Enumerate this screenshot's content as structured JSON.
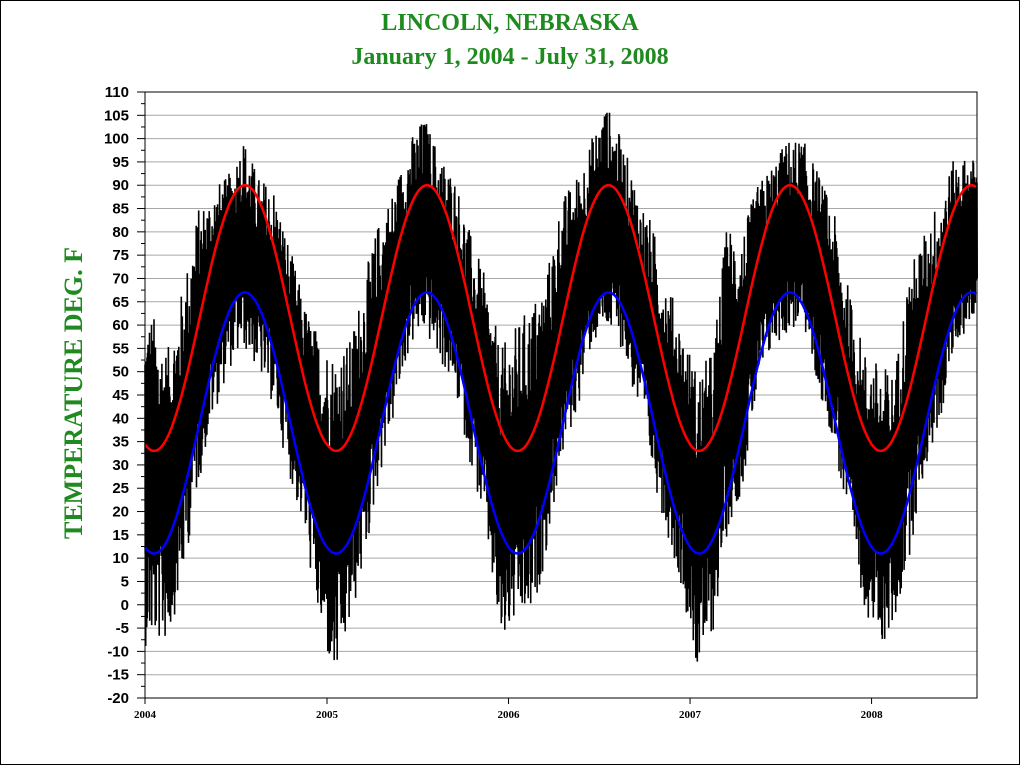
{
  "chart_data": {
    "type": "line",
    "title": "LINCOLN, NEBRASKA",
    "subtitle": "January 1, 2004 - July 31,  2008",
    "ylabel": "TEMPERATURE DEG. F",
    "xlabel": "",
    "x_range": [
      "2004-01-01",
      "2008-07-31"
    ],
    "ylim": [
      -20,
      110
    ],
    "yticks": [
      "110",
      "105",
      "100",
      "95",
      "90",
      "85",
      "80",
      "75",
      "70",
      "65",
      "60",
      "55",
      "50",
      "45",
      "40",
      "35",
      "30",
      "25",
      "20",
      "15",
      "10",
      "5",
      "0",
      "-5",
      "-10",
      "-15",
      "-20"
    ],
    "xticks": [
      "2004",
      "2005",
      "2006",
      "2007",
      "2008"
    ],
    "grid": true,
    "series": [
      {
        "color": "#000000",
        "style": "daily observed temperature (dense)",
        "values": [
          {
            "x": "2004-01",
            "y": [
              -9,
              63
            ]
          },
          {
            "x": "2004-02",
            "y": [
              -8,
              55
            ]
          },
          {
            "x": "2004-03",
            "y": [
              5,
              68
            ]
          },
          {
            "x": "2004-04",
            "y": [
              25,
              85
            ]
          },
          {
            "x": "2004-05",
            "y": [
              40,
              90
            ]
          },
          {
            "x": "2004-06",
            "y": [
              50,
              92
            ]
          },
          {
            "x": "2004-07",
            "y": [
              55,
              101
            ]
          },
          {
            "x": "2004-08",
            "y": [
              50,
              92
            ]
          },
          {
            "x": "2004-09",
            "y": [
              42,
              90
            ]
          },
          {
            "x": "2004-10",
            "y": [
              28,
              78
            ]
          },
          {
            "x": "2004-11",
            "y": [
              15,
              65
            ]
          },
          {
            "x": "2004-12",
            "y": [
              -5,
              58
            ]
          },
          {
            "x": "2005-01",
            "y": [
              -18,
              55
            ]
          },
          {
            "x": "2005-02",
            "y": [
              -5,
              57
            ]
          },
          {
            "x": "2005-03",
            "y": [
              8,
              70
            ]
          },
          {
            "x": "2005-04",
            "y": [
              27,
              83
            ]
          },
          {
            "x": "2005-05",
            "y": [
              40,
              90
            ]
          },
          {
            "x": "2005-06",
            "y": [
              55,
              100
            ]
          },
          {
            "x": "2005-07",
            "y": [
              58,
              105
            ]
          },
          {
            "x": "2005-08",
            "y": [
              52,
              97
            ]
          },
          {
            "x": "2005-09",
            "y": [
              45,
              92
            ]
          },
          {
            "x": "2005-10",
            "y": [
              30,
              80
            ]
          },
          {
            "x": "2005-11",
            "y": [
              15,
              70
            ]
          },
          {
            "x": "2005-12",
            "y": [
              -10,
              55
            ]
          },
          {
            "x": "2006-01",
            "y": [
              -4,
              60
            ]
          },
          {
            "x": "2006-02",
            "y": [
              -4,
              65
            ]
          },
          {
            "x": "2006-03",
            "y": [
              10,
              70
            ]
          },
          {
            "x": "2006-04",
            "y": [
              30,
              87
            ]
          },
          {
            "x": "2006-05",
            "y": [
              40,
              92
            ]
          },
          {
            "x": "2006-06",
            "y": [
              55,
              100
            ]
          },
          {
            "x": "2006-07",
            "y": [
              58,
              108
            ]
          },
          {
            "x": "2006-08",
            "y": [
              55,
              100
            ]
          },
          {
            "x": "2006-09",
            "y": [
              42,
              90
            ]
          },
          {
            "x": "2006-10",
            "y": [
              28,
              82
            ]
          },
          {
            "x": "2006-11",
            "y": [
              15,
              70
            ]
          },
          {
            "x": "2006-12",
            "y": [
              3,
              60
            ]
          },
          {
            "x": "2007-01",
            "y": [
              -15,
              50
            ]
          },
          {
            "x": "2007-02",
            "y": [
              -6,
              55
            ]
          },
          {
            "x": "2007-03",
            "y": [
              15,
              82
            ]
          },
          {
            "x": "2007-04",
            "y": [
              25,
              80
            ]
          },
          {
            "x": "2007-05",
            "y": [
              45,
              90
            ]
          },
          {
            "x": "2007-06",
            "y": [
              55,
              95
            ]
          },
          {
            "x": "2007-07",
            "y": [
              58,
              100
            ]
          },
          {
            "x": "2007-08",
            "y": [
              60,
              100
            ]
          },
          {
            "x": "2007-09",
            "y": [
              45,
              93
            ]
          },
          {
            "x": "2007-10",
            "y": [
              35,
              85
            ]
          },
          {
            "x": "2007-11",
            "y": [
              15,
              68
            ]
          },
          {
            "x": "2007-12",
            "y": [
              0,
              55
            ]
          },
          {
            "x": "2008-01",
            "y": [
              -10,
              52
            ]
          },
          {
            "x": "2008-02",
            "y": [
              -5,
              50
            ]
          },
          {
            "x": "2008-03",
            "y": [
              10,
              72
            ]
          },
          {
            "x": "2008-04",
            "y": [
              28,
              80
            ]
          },
          {
            "x": "2008-05",
            "y": [
              38,
              88
            ]
          },
          {
            "x": "2008-06",
            "y": [
              55,
              96
            ]
          },
          {
            "x": "2008-07",
            "y": [
              60,
              96
            ]
          }
        ]
      },
      {
        "color": "#ff0000",
        "style": "smooth seasonal curve",
        "min": 33,
        "max": 90,
        "peak": "late July",
        "trough": "mid January",
        "values": [
          {
            "x": "2004-01-15",
            "y": 33
          },
          {
            "x": "2004-07-20",
            "y": 90
          },
          {
            "x": "2005-01-15",
            "y": 33
          },
          {
            "x": "2005-07-20",
            "y": 90
          },
          {
            "x": "2006-01-15",
            "y": 33
          },
          {
            "x": "2006-07-20",
            "y": 90
          },
          {
            "x": "2007-01-15",
            "y": 33
          },
          {
            "x": "2007-07-20",
            "y": 90
          },
          {
            "x": "2008-01-15",
            "y": 33
          },
          {
            "x": "2008-07-20",
            "y": 90
          }
        ]
      },
      {
        "color": "#0000ff",
        "style": "smooth seasonal curve",
        "min": 11,
        "max": 67,
        "peak": "late July",
        "trough": "mid January",
        "values": [
          {
            "x": "2004-01-15",
            "y": 11
          },
          {
            "x": "2004-07-20",
            "y": 67
          },
          {
            "x": "2005-01-15",
            "y": 11
          },
          {
            "x": "2005-07-20",
            "y": 67
          },
          {
            "x": "2006-01-15",
            "y": 11
          },
          {
            "x": "2006-07-20",
            "y": 67
          },
          {
            "x": "2007-01-15",
            "y": 11
          },
          {
            "x": "2007-07-20",
            "y": 67
          },
          {
            "x": "2008-01-15",
            "y": 11
          },
          {
            "x": "2008-07-20",
            "y": 67
          }
        ]
      }
    ]
  }
}
